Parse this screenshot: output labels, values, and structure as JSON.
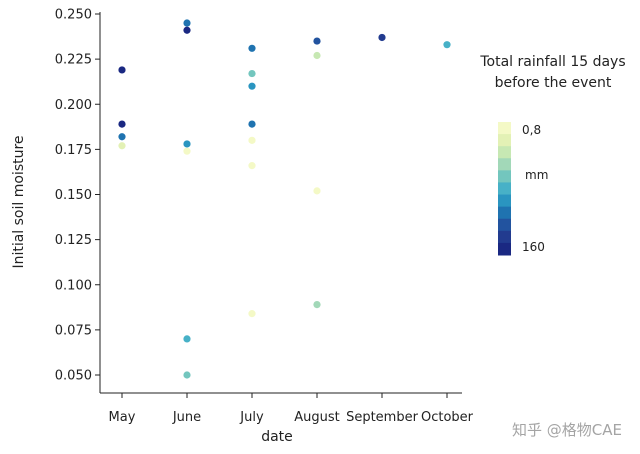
{
  "chart_data": {
    "type": "scatter",
    "xlabel": "date",
    "ylabel": "Initial soil moisture",
    "categories": [
      "May",
      "June",
      "July",
      "August",
      "September",
      "October"
    ],
    "ylim": [
      0.045,
      0.252
    ],
    "yticks": [
      "0.050",
      "0.075",
      "0.100",
      "0.125",
      "0.150",
      "0.175",
      "0.200",
      "0.225",
      "0.250"
    ],
    "yticks_values": [
      0.05,
      0.075,
      0.1,
      0.125,
      0.15,
      0.175,
      0.2,
      0.225,
      0.25
    ],
    "points": [
      {
        "x": "May",
        "y": 0.219,
        "rainfall": 150
      },
      {
        "x": "May",
        "y": 0.189,
        "rainfall": 160
      },
      {
        "x": "May",
        "y": 0.182,
        "rainfall": 110
      },
      {
        "x": "May",
        "y": 0.177,
        "rainfall": 25
      },
      {
        "x": "June",
        "y": 0.245,
        "rainfall": 115
      },
      {
        "x": "June",
        "y": 0.241,
        "rainfall": 160
      },
      {
        "x": "June",
        "y": 0.178,
        "rainfall": 95
      },
      {
        "x": "June",
        "y": 0.174,
        "rainfall": 3
      },
      {
        "x": "June",
        "y": 0.07,
        "rainfall": 75
      },
      {
        "x": "June",
        "y": 0.05,
        "rainfall": 65
      },
      {
        "x": "July",
        "y": 0.231,
        "rainfall": 105
      },
      {
        "x": "July",
        "y": 0.217,
        "rainfall": 65
      },
      {
        "x": "July",
        "y": 0.21,
        "rainfall": 95
      },
      {
        "x": "July",
        "y": 0.189,
        "rainfall": 105
      },
      {
        "x": "July",
        "y": 0.18,
        "rainfall": 8
      },
      {
        "x": "July",
        "y": 0.166,
        "rainfall": 4
      },
      {
        "x": "July",
        "y": 0.084,
        "rainfall": 1
      },
      {
        "x": "August",
        "y": 0.235,
        "rainfall": 130
      },
      {
        "x": "August",
        "y": 0.227,
        "rainfall": 40
      },
      {
        "x": "August",
        "y": 0.152,
        "rainfall": 12
      },
      {
        "x": "August",
        "y": 0.089,
        "rainfall": 55
      },
      {
        "x": "September",
        "y": 0.237,
        "rainfall": 140
      },
      {
        "x": "October",
        "y": 0.233,
        "rainfall": 85
      }
    ],
    "colorbar": {
      "title_line1": "Total rainfall 15 days",
      "title_line2": "before the event",
      "min_label": "0,8",
      "max_label": "160",
      "unit_label": "mm",
      "min": 0.8,
      "max": 160,
      "colors": [
        "#f4f9c6",
        "#e3f1b5",
        "#c7e8b3",
        "#a2d8b8",
        "#73c6be",
        "#47b1c7",
        "#2a95c0",
        "#1f73b0",
        "#22539f",
        "#223b8f",
        "#1a2882"
      ]
    }
  },
  "watermark": "知乎 @格物CAE"
}
